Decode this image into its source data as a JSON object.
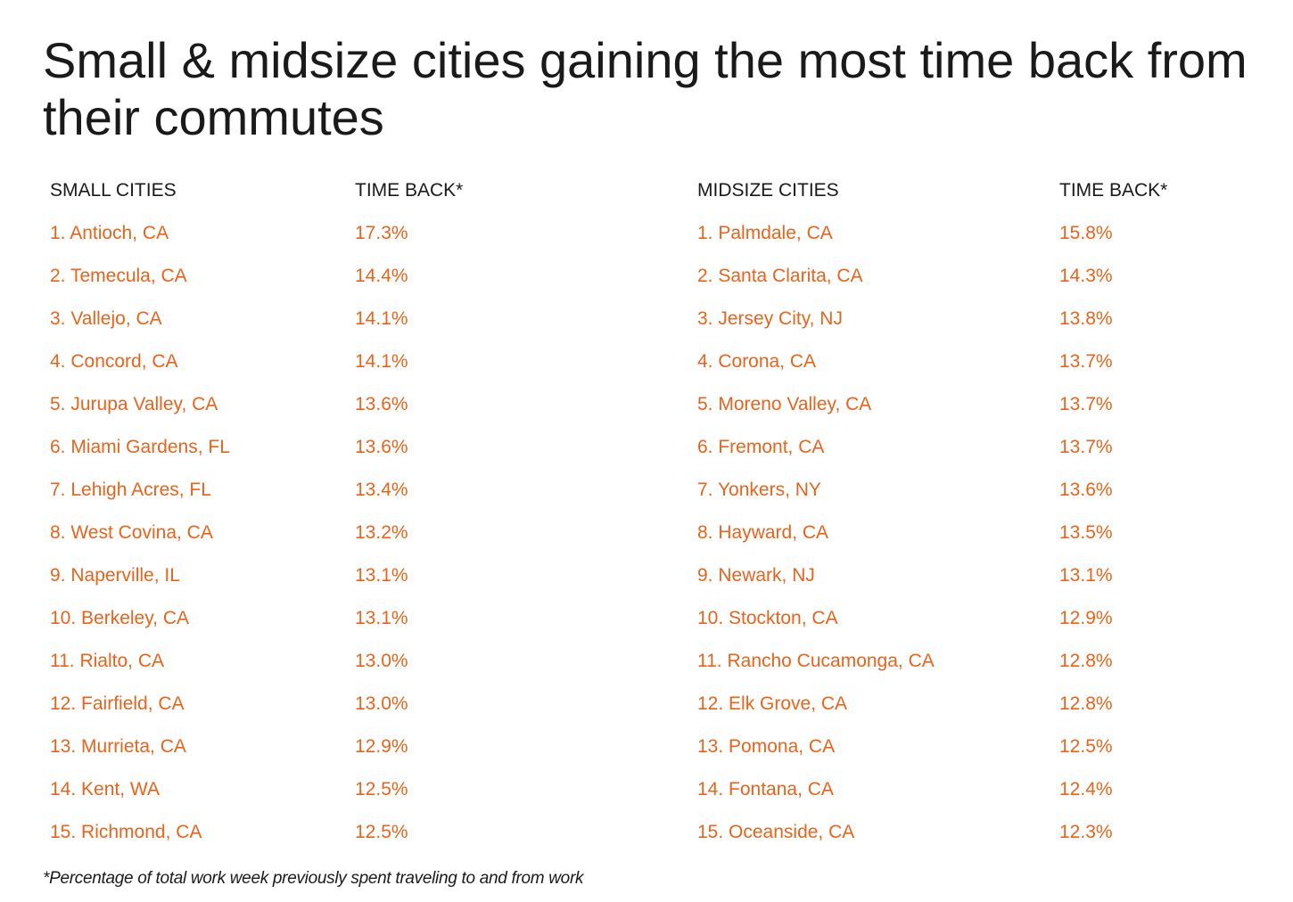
{
  "title": "Small & midsize cities gaining the most time back from their commutes",
  "small": {
    "header_city": "SMALL CITIES",
    "header_value": "TIME BACK*",
    "rows": [
      {
        "city": "1. Antioch, CA",
        "value": "17.3%"
      },
      {
        "city": "2. Temecula, CA",
        "value": "14.4%"
      },
      {
        "city": "3. Vallejo, CA",
        "value": "14.1%"
      },
      {
        "city": "4. Concord, CA",
        "value": "14.1%"
      },
      {
        "city": "5. Jurupa Valley, CA",
        "value": "13.6%"
      },
      {
        "city": "6. Miami Gardens, FL",
        "value": "13.6%"
      },
      {
        "city": "7. Lehigh Acres, FL",
        "value": "13.4%"
      },
      {
        "city": "8. West Covina, CA",
        "value": "13.2%"
      },
      {
        "city": "9. Naperville, IL",
        "value": "13.1%"
      },
      {
        "city": "10. Berkeley, CA",
        "value": "13.1%"
      },
      {
        "city": "11. Rialto, CA",
        "value": "13.0%"
      },
      {
        "city": "12. Fairfield, CA",
        "value": "13.0%"
      },
      {
        "city": "13. Murrieta, CA",
        "value": "12.9%"
      },
      {
        "city": "14. Kent, WA",
        "value": "12.5%"
      },
      {
        "city": "15. Richmond, CA",
        "value": "12.5%"
      }
    ]
  },
  "midsize": {
    "header_city": "MIDSIZE CITIES",
    "header_value": "TIME BACK*",
    "rows": [
      {
        "city": "1. Palmdale, CA",
        "value": "15.8%"
      },
      {
        "city": "2. Santa Clarita, CA",
        "value": "14.3%"
      },
      {
        "city": "3. Jersey City, NJ",
        "value": "13.8%"
      },
      {
        "city": "4. Corona, CA",
        "value": "13.7%"
      },
      {
        "city": "5. Moreno Valley, CA",
        "value": "13.7%"
      },
      {
        "city": "6. Fremont, CA",
        "value": "13.7%"
      },
      {
        "city": "7. Yonkers, NY",
        "value": "13.6%"
      },
      {
        "city": "8. Hayward, CA",
        "value": "13.5%"
      },
      {
        "city": "9. Newark, NJ",
        "value": "13.1%"
      },
      {
        "city": "10. Stockton, CA",
        "value": "12.9%"
      },
      {
        "city": "11. Rancho Cucamonga, CA",
        "value": "12.8%"
      },
      {
        "city": "12. Elk Grove, CA",
        "value": "12.8%"
      },
      {
        "city": "13. Pomona, CA",
        "value": "12.5%"
      },
      {
        "city": "14. Fontana, CA",
        "value": "12.4%"
      },
      {
        "city": "15. Oceanside, CA",
        "value": "12.3%"
      }
    ]
  },
  "footnote": "*Percentage of total work week previously spent traveling to and from work",
  "colors": {
    "accent": "#e8641b",
    "text": "#1a1a1a",
    "background": "#ffffff"
  }
}
